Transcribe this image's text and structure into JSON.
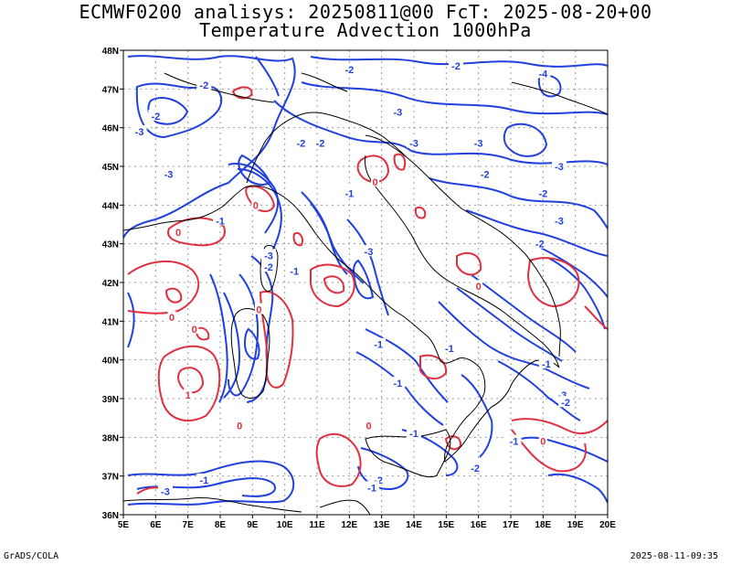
{
  "title_line1": "ECMWF0200 analisys: 20250811@00 FcT: 2025-08-20+00",
  "title_line2": "Temperature Advection 1000hPa",
  "footer_left": "GrADS/COLA",
  "footer_right": "2025-08-11-09:35",
  "map": {
    "lon_range": [
      5,
      20
    ],
    "lat_range": [
      36,
      48
    ],
    "lon_ticks": [
      "5E",
      "6E",
      "7E",
      "8E",
      "9E",
      "10E",
      "11E",
      "12E",
      "13E",
      "14E",
      "15E",
      "16E",
      "17E",
      "18E",
      "19E",
      "20E"
    ],
    "lat_ticks": [
      "36N",
      "37N",
      "38N",
      "39N",
      "40N",
      "41N",
      "42N",
      "43N",
      "44N",
      "45N",
      "46N",
      "47N",
      "48N"
    ],
    "grid": "dotted",
    "colors": {
      "negative_contour": "#2040e0",
      "positive_contour": "#e03040",
      "coastline": "#000000"
    }
  },
  "contour_labels": [
    {
      "text": "-2",
      "lon": 7.5,
      "lat": 47.1,
      "sign": "neg"
    },
    {
      "text": "-2",
      "lon": 12.0,
      "lat": 47.5,
      "sign": "neg"
    },
    {
      "text": "-2",
      "lon": 15.3,
      "lat": 47.6,
      "sign": "neg"
    },
    {
      "text": "-4",
      "lon": 18.0,
      "lat": 47.4,
      "sign": "neg"
    },
    {
      "text": "-3",
      "lon": 13.5,
      "lat": 46.4,
      "sign": "neg"
    },
    {
      "text": "-3",
      "lon": 14.0,
      "lat": 45.6,
      "sign": "neg"
    },
    {
      "text": "-3",
      "lon": 16.0,
      "lat": 45.6,
      "sign": "neg"
    },
    {
      "text": "-3",
      "lon": 18.5,
      "lat": 45.0,
      "sign": "neg"
    },
    {
      "text": "-2",
      "lon": 16.2,
      "lat": 44.8,
      "sign": "neg"
    },
    {
      "text": "-2",
      "lon": 18.0,
      "lat": 44.3,
      "sign": "neg"
    },
    {
      "text": "-3",
      "lon": 18.5,
      "lat": 43.6,
      "sign": "neg"
    },
    {
      "text": "-2",
      "lon": 6.0,
      "lat": 46.3,
      "sign": "neg"
    },
    {
      "text": "-3",
      "lon": 5.5,
      "lat": 45.9,
      "sign": "neg"
    },
    {
      "text": "-3",
      "lon": 6.4,
      "lat": 44.8,
      "sign": "neg"
    },
    {
      "text": "-2",
      "lon": 10.5,
      "lat": 45.6,
      "sign": "neg"
    },
    {
      "text": "-2",
      "lon": 11.1,
      "lat": 45.6,
      "sign": "neg"
    },
    {
      "text": "-1",
      "lon": 12.0,
      "lat": 44.3,
      "sign": "neg"
    },
    {
      "text": "-3",
      "lon": 9.5,
      "lat": 42.7,
      "sign": "neg"
    },
    {
      "text": "-2",
      "lon": 9.5,
      "lat": 42.4,
      "sign": "neg"
    },
    {
      "text": "-3",
      "lon": 12.6,
      "lat": 42.8,
      "sign": "neg"
    },
    {
      "text": "-1",
      "lon": 10.3,
      "lat": 42.3,
      "sign": "neg"
    },
    {
      "text": "-2",
      "lon": 17.9,
      "lat": 43.0,
      "sign": "neg"
    },
    {
      "text": "-1",
      "lon": 12.9,
      "lat": 40.4,
      "sign": "neg"
    },
    {
      "text": "-1",
      "lon": 13.5,
      "lat": 39.4,
      "sign": "neg"
    },
    {
      "text": "-1",
      "lon": 15.1,
      "lat": 40.3,
      "sign": "neg"
    },
    {
      "text": "-1",
      "lon": 14.0,
      "lat": 38.1,
      "sign": "neg"
    },
    {
      "text": "-3",
      "lon": 18.6,
      "lat": 39.1,
      "sign": "neg"
    },
    {
      "text": "-2",
      "lon": 18.7,
      "lat": 38.9,
      "sign": "neg"
    },
    {
      "text": "-1",
      "lon": 18.1,
      "lat": 39.9,
      "sign": "neg"
    },
    {
      "text": "-1",
      "lon": 17.1,
      "lat": 37.9,
      "sign": "neg"
    },
    {
      "text": "-2",
      "lon": 15.9,
      "lat": 37.2,
      "sign": "neg"
    },
    {
      "text": "-2",
      "lon": 12.9,
      "lat": 36.9,
      "sign": "neg"
    },
    {
      "text": "-1",
      "lon": 12.7,
      "lat": 36.7,
      "sign": "neg"
    },
    {
      "text": "-1",
      "lon": 7.5,
      "lat": 36.9,
      "sign": "neg"
    },
    {
      "text": "-3",
      "lon": 6.3,
      "lat": 36.6,
      "sign": "neg"
    },
    {
      "text": "-1",
      "lon": 8.0,
      "lat": 43.6,
      "sign": "neg"
    },
    {
      "text": "0",
      "lon": 12.8,
      "lat": 44.6,
      "sign": "pos"
    },
    {
      "text": "0",
      "lon": 9.1,
      "lat": 44.0,
      "sign": "pos"
    },
    {
      "text": "0",
      "lon": 6.7,
      "lat": 43.3,
      "sign": "pos"
    },
    {
      "text": "0",
      "lon": 6.5,
      "lat": 41.1,
      "sign": "pos"
    },
    {
      "text": "0",
      "lon": 7.2,
      "lat": 40.8,
      "sign": "pos"
    },
    {
      "text": "0",
      "lon": 9.2,
      "lat": 41.3,
      "sign": "pos"
    },
    {
      "text": "0",
      "lon": 16.0,
      "lat": 41.9,
      "sign": "pos"
    },
    {
      "text": "1",
      "lon": 7.0,
      "lat": 39.1,
      "sign": "pos"
    },
    {
      "text": "0",
      "lon": 8.6,
      "lat": 38.3,
      "sign": "pos"
    },
    {
      "text": "0",
      "lon": 12.6,
      "lat": 38.3,
      "sign": "pos"
    },
    {
      "text": "0",
      "lon": 18.0,
      "lat": 37.9,
      "sign": "pos"
    }
  ]
}
